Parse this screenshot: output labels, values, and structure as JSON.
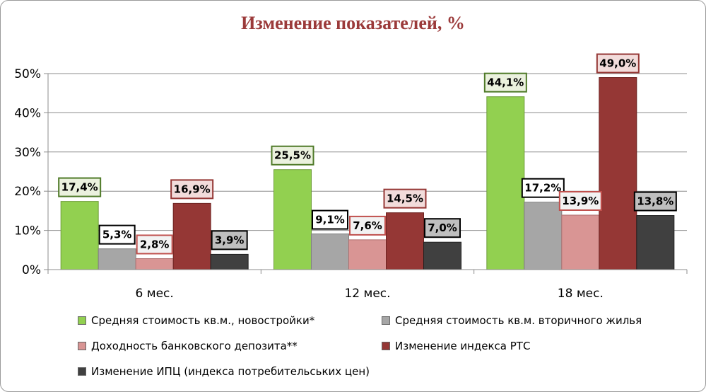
{
  "chart_data": {
    "type": "bar",
    "title": "Изменение показателей, %",
    "categories": [
      "6 мес.",
      "12 мес.",
      "18 мес."
    ],
    "y_ticks": [
      "0%",
      "10%",
      "20%",
      "30%",
      "40%",
      "50%"
    ],
    "ylim": [
      0,
      50
    ],
    "gridlines": true,
    "legend_position": "bottom",
    "series": [
      {
        "name": "Средняя стоимость кв.м., новостройки*",
        "color": "#92d050",
        "border": "#6f9e3a",
        "label_bg": "#ebf1de",
        "label_border": "#4f7a28",
        "values": [
          17.4,
          25.5,
          44.1
        ],
        "labels": [
          "17,4%",
          "25,5%",
          "44,1%"
        ]
      },
      {
        "name": "Средняя стоимость кв.м. вторичного жилья",
        "color": "#a6a6a6",
        "border": "#808080",
        "label_bg": "#ffffff",
        "label_border": "#000000",
        "values": [
          5.3,
          9.1,
          17.2
        ],
        "labels": [
          "5,3%",
          "9,1%",
          "17,2%"
        ]
      },
      {
        "name": "Доходность банковского депозита**",
        "color": "#d99594",
        "border": "#b07070",
        "label_bg": "#f2f2f2",
        "label_border": "#c0504d",
        "values": [
          2.8,
          7.6,
          13.9
        ],
        "labels": [
          "2,8%",
          "7,6%",
          "13,9%"
        ]
      },
      {
        "name": "Изменение индекса РТС",
        "color": "#953735",
        "border": "#6e2422",
        "label_bg": "#f2dcdb",
        "label_border": "#953735",
        "values": [
          16.9,
          14.5,
          49.0
        ],
        "labels": [
          "16,9%",
          "14,5%",
          "49,0%"
        ]
      },
      {
        "name": "Изменение ИПЦ (индекса потребительських цен)",
        "color": "#404040",
        "border": "#202020",
        "label_bg": "#bfbfbf",
        "label_border": "#000000",
        "values": [
          3.9,
          7.0,
          13.8
        ],
        "labels": [
          "3,9%",
          "7,0%",
          "13,8%"
        ]
      }
    ]
  }
}
